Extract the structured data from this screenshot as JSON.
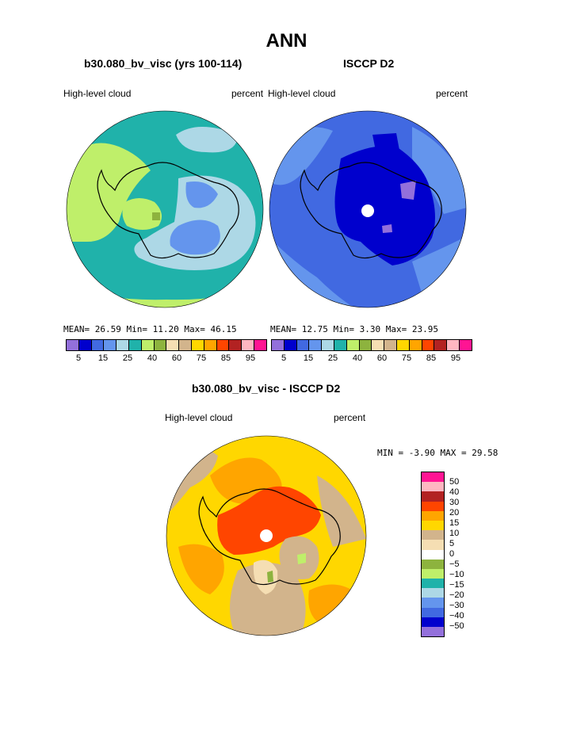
{
  "title": "ANN",
  "panels": [
    {
      "case": "b30.080_bv_visc (yrs 100-114)",
      "variable": "High-level cloud",
      "units": "percent",
      "stats": {
        "mean_label": "MEAN=",
        "mean": "26.59",
        "min_label": "Min=",
        "min": "11.20",
        "max_label": "Max=",
        "max": "46.15"
      }
    },
    {
      "case": "ISCCP D2",
      "variable": "High-level cloud",
      "units": "percent",
      "stats": {
        "mean_label": "MEAN=",
        "mean": "12.75",
        "min_label": "Min=",
        "min": "3.30",
        "max_label": "Max=",
        "max": "23.95"
      }
    },
    {
      "case": "b30.080_bv_visc - ISCCP D2",
      "variable": "High-level cloud",
      "units": "percent",
      "stats": {
        "min_label": "MIN =",
        "min": "-3.90",
        "max_label": "MAX =",
        "max": "29.58"
      }
    }
  ],
  "colorbar_top": {
    "colors": [
      "#9370DB",
      "#0000CD",
      "#4169E1",
      "#6495ED",
      "#ADD8E6",
      "#20B2AA",
      "#BFEF6A",
      "#8DB33E",
      "#F5DEB3",
      "#D2B48C",
      "#FFD700",
      "#FFA500",
      "#FF4500",
      "#B22222",
      "#FFB6C1",
      "#FF1493"
    ],
    "tick_labels": [
      "5",
      "15",
      "25",
      "40",
      "60",
      "75",
      "85",
      "95"
    ]
  },
  "colorbar_diff": {
    "colors": [
      "#FF1493",
      "#FFB6C1",
      "#B22222",
      "#FF4500",
      "#FFA500",
      "#FFD700",
      "#D2B48C",
      "#F5DEB3",
      "#FFFFFF",
      "#8DB33E",
      "#BFEF6A",
      "#20B2AA",
      "#ADD8E6",
      "#6495ED",
      "#4169E1",
      "#0000CD",
      "#9370DB"
    ],
    "labels": [
      "50",
      "40",
      "30",
      "20",
      "15",
      "10",
      "5",
      "0",
      "−5",
      "−10",
      "−15",
      "−20",
      "−30",
      "−40",
      "−50"
    ]
  },
  "chart_data": [
    {
      "type": "heatmap",
      "title": "b30.080_bv_visc (yrs 100-114)",
      "subtitle": "High-level cloud",
      "units": "percent",
      "projection": "south polar stereographic",
      "mean": 26.59,
      "min": 11.2,
      "max": 46.15,
      "contour_levels": [
        5,
        10,
        15,
        20,
        25,
        30,
        40,
        50,
        60,
        70,
        75,
        80,
        85,
        90,
        95
      ]
    },
    {
      "type": "heatmap",
      "title": "ISCCP D2",
      "subtitle": "High-level cloud",
      "units": "percent",
      "projection": "south polar stereographic",
      "mean": 12.75,
      "min": 3.3,
      "max": 23.95,
      "contour_levels": [
        5,
        10,
        15,
        20,
        25,
        30,
        40,
        50,
        60,
        70,
        75,
        80,
        85,
        90,
        95
      ]
    },
    {
      "type": "heatmap",
      "title": "b30.080_bv_visc - ISCCP D2",
      "subtitle": "High-level cloud",
      "units": "percent",
      "projection": "south polar stereographic",
      "min": -3.9,
      "max": 29.58,
      "contour_levels": [
        -50,
        -40,
        -30,
        -20,
        -15,
        -10,
        -5,
        0,
        5,
        10,
        15,
        20,
        30,
        40,
        50
      ]
    }
  ]
}
